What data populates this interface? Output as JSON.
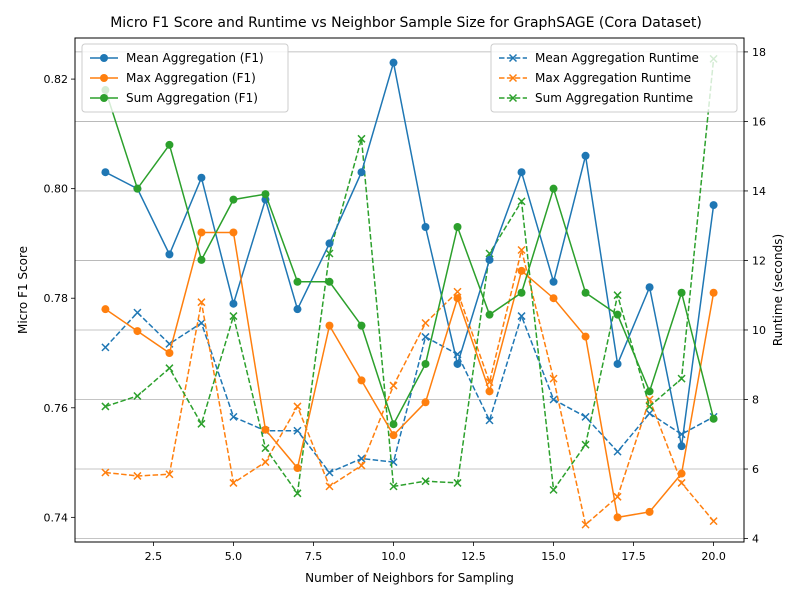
{
  "chart_data": {
    "type": "line",
    "title": "Micro F1 Score and Runtime vs Neighbor Sample Size for GraphSAGE (Cora Dataset)",
    "xlabel": "Number of Neighbors for Sampling",
    "ylabel_left": "Micro F1 Score",
    "ylabel_right": "Runtime (seconds)",
    "x": [
      1,
      2,
      3,
      4,
      5,
      6,
      7,
      8,
      9,
      10,
      11,
      12,
      13,
      14,
      15,
      16,
      17,
      18,
      19,
      20
    ],
    "xlim": [
      0.05,
      20.95
    ],
    "ylim_left": [
      0.7355,
      0.8275
    ],
    "ylim_right": [
      3.9,
      18.4
    ],
    "x_ticks": [
      2.5,
      5.0,
      7.5,
      10.0,
      12.5,
      15.0,
      17.5,
      20.0
    ],
    "y_ticks_left": [
      0.74,
      0.76,
      0.78,
      0.8,
      0.82
    ],
    "y_ticks_right": [
      4,
      6,
      8,
      10,
      12,
      14,
      16,
      18
    ],
    "grid": "horizontal lines at right-axis ticks",
    "legend_left_placement": "upper-left",
    "legend_right_placement": "upper-right",
    "f1_series": [
      {
        "name": "Mean Aggregation (F1)",
        "color": "#1f77b4",
        "values": [
          0.803,
          0.8,
          0.788,
          0.802,
          0.779,
          0.798,
          0.778,
          0.79,
          0.803,
          0.823,
          0.793,
          0.768,
          0.787,
          0.803,
          0.783,
          0.806,
          0.768,
          0.782,
          0.753,
          0.797
        ]
      },
      {
        "name": "Max Aggregation (F1)",
        "color": "#ff7f0e",
        "values": [
          0.778,
          0.774,
          0.77,
          0.792,
          0.792,
          0.756,
          0.749,
          0.775,
          0.765,
          0.755,
          0.761,
          0.78,
          0.763,
          0.785,
          0.78,
          0.773,
          0.74,
          0.741,
          0.748,
          0.781
        ]
      },
      {
        "name": "Sum Aggregation (F1)",
        "color": "#2ca02c",
        "values": [
          0.818,
          0.8,
          0.808,
          0.787,
          0.798,
          0.799,
          0.783,
          0.783,
          0.775,
          0.757,
          0.768,
          0.793,
          0.777,
          0.781,
          0.8,
          0.781,
          0.777,
          0.763,
          0.781,
          0.758
        ]
      }
    ],
    "runtime_series": [
      {
        "name": "Mean Aggregation Runtime",
        "color": "#1f77b4",
        "values": [
          9.5,
          10.5,
          9.6,
          10.2,
          7.5,
          7.1,
          7.1,
          5.9,
          6.3,
          6.2,
          9.8,
          9.3,
          7.4,
          10.4,
          8.0,
          7.5,
          6.5,
          7.6,
          7.0,
          7.5
        ]
      },
      {
        "name": "Max Aggregation Runtime",
        "color": "#ff7f0e",
        "values": [
          5.9,
          5.8,
          5.85,
          10.8,
          5.6,
          6.2,
          7.8,
          5.5,
          6.1,
          8.4,
          10.2,
          11.1,
          8.5,
          12.3,
          8.6,
          4.4,
          5.2,
          8.0,
          5.6,
          4.5
        ]
      },
      {
        "name": "Sum Aggregation Runtime",
        "color": "#2ca02c",
        "values": [
          7.8,
          8.1,
          8.9,
          7.3,
          10.4,
          6.6,
          5.3,
          12.2,
          15.5,
          5.5,
          5.65,
          5.6,
          12.2,
          13.7,
          5.4,
          6.7,
          11.0,
          7.8,
          8.6,
          17.8
        ]
      }
    ]
  }
}
